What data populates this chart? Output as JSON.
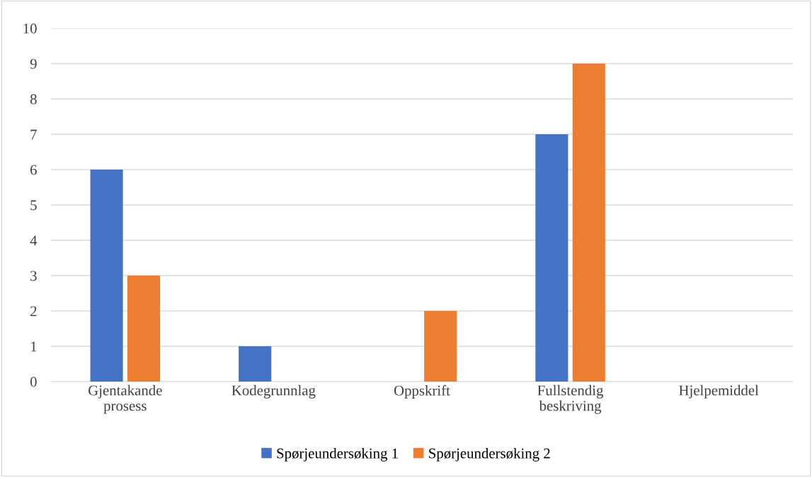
{
  "chart_data": {
    "type": "bar",
    "categories": [
      "Gjentakande prosess",
      "Kodegrunnlag",
      "Oppskrift",
      "Fullstendig beskriving",
      "Hjelpemiddel"
    ],
    "series": [
      {
        "name": "Spørjeundersøking 1",
        "color": "#4472c4",
        "values": [
          6,
          1,
          0,
          7,
          0
        ]
      },
      {
        "name": "Spørjeundersøking 2",
        "color": "#ed7d31",
        "values": [
          3,
          0,
          2,
          9,
          0
        ]
      }
    ],
    "ylim": [
      0,
      10
    ],
    "yticks": [
      0,
      1,
      2,
      3,
      4,
      5,
      6,
      7,
      8,
      9,
      10
    ],
    "grid": "y",
    "legend": "bottom"
  }
}
